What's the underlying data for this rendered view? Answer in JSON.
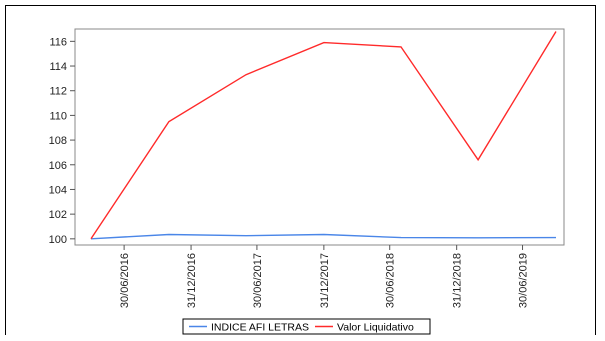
{
  "chart_data": {
    "type": "line",
    "title": "",
    "xlabel": "",
    "ylabel": "",
    "ylim": [
      99.5,
      117
    ],
    "yticks": [
      100,
      102,
      104,
      106,
      108,
      110,
      112,
      114,
      116
    ],
    "xticks": [
      "30/06/2016",
      "31/12/2016",
      "30/06/2017",
      "31/12/2017",
      "30/06/2018",
      "31/12/2018",
      "30/06/2019"
    ],
    "grid": false,
    "legend_position": "bottom",
    "series": [
      {
        "name": "INDICE AFI LETRAS",
        "color": "#4a86e8",
        "points": [
          {
            "x": "2016-03-31",
            "y": 100.0
          },
          {
            "x": "2016-10-31",
            "y": 100.35
          },
          {
            "x": "2017-05-31",
            "y": 100.25
          },
          {
            "x": "2017-12-31",
            "y": 100.35
          },
          {
            "x": "2018-07-31",
            "y": 100.1
          },
          {
            "x": "2019-02-28",
            "y": 100.08
          },
          {
            "x": "2019-09-30",
            "y": 100.1
          }
        ]
      },
      {
        "name": "Valor Liquidativo",
        "color": "#ff2a2a",
        "points": [
          {
            "x": "2016-03-31",
            "y": 100.0
          },
          {
            "x": "2016-10-31",
            "y": 109.5
          },
          {
            "x": "2017-05-31",
            "y": 113.3
          },
          {
            "x": "2017-12-31",
            "y": 115.9
          },
          {
            "x": "2018-07-31",
            "y": 115.55
          },
          {
            "x": "2019-02-28",
            "y": 106.4
          },
          {
            "x": "2019-09-30",
            "y": 116.8
          }
        ]
      }
    ]
  }
}
